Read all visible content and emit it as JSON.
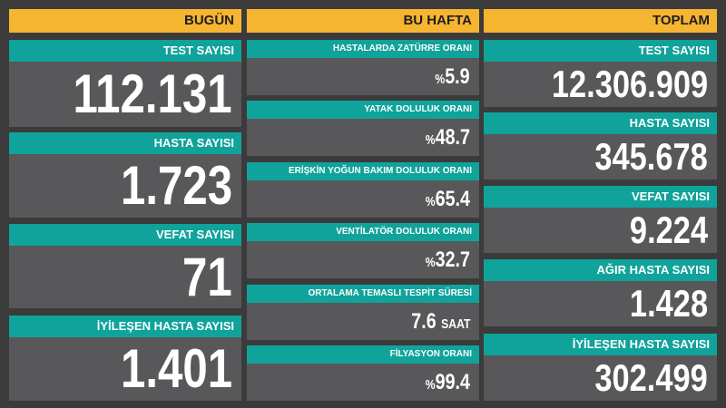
{
  "columns": [
    {
      "header": "BUGÜN",
      "cards": [
        {
          "label": "TEST SAYISI",
          "value": "112.131"
        },
        {
          "label": "HASTA SAYISI",
          "value": "1.723"
        },
        {
          "label": "VEFAT SAYISI",
          "value": "71"
        },
        {
          "label": "İYİLEŞEN HASTA SAYISI",
          "value": "1.401"
        }
      ]
    },
    {
      "header": "BU HAFTA",
      "cards": [
        {
          "label": "HASTALARDA ZATÜRRE ORANI",
          "prefix": "%",
          "value": "5.9"
        },
        {
          "label": "YATAK DOLULUK ORANI",
          "prefix": "%",
          "value": "48.7"
        },
        {
          "label": "ERİŞKİN YOĞUN BAKIM DOLULUK ORANI",
          "prefix": "%",
          "value": "65.4"
        },
        {
          "label": "VENTİLATÖR DOLULUK ORANI",
          "prefix": "%",
          "value": "32.7"
        },
        {
          "label": "ORTALAMA TEMASLI TESPİT SÜRESİ",
          "value": "7.6",
          "suffix": "SAAT"
        },
        {
          "label": "FİLYASYON ORANI",
          "prefix": "%",
          "value": "99.4"
        }
      ]
    },
    {
      "header": "TOPLAM",
      "cards": [
        {
          "label": "TEST SAYISI",
          "value": "12.306.909"
        },
        {
          "label": "HASTA SAYISI",
          "value": "345.678"
        },
        {
          "label": "VEFAT SAYISI",
          "value": "9.224"
        },
        {
          "label": "AĞIR HASTA SAYISI",
          "value": "1.428"
        },
        {
          "label": "İYİLEŞEN HASTA SAYISI",
          "value": "302.499"
        }
      ]
    }
  ]
}
